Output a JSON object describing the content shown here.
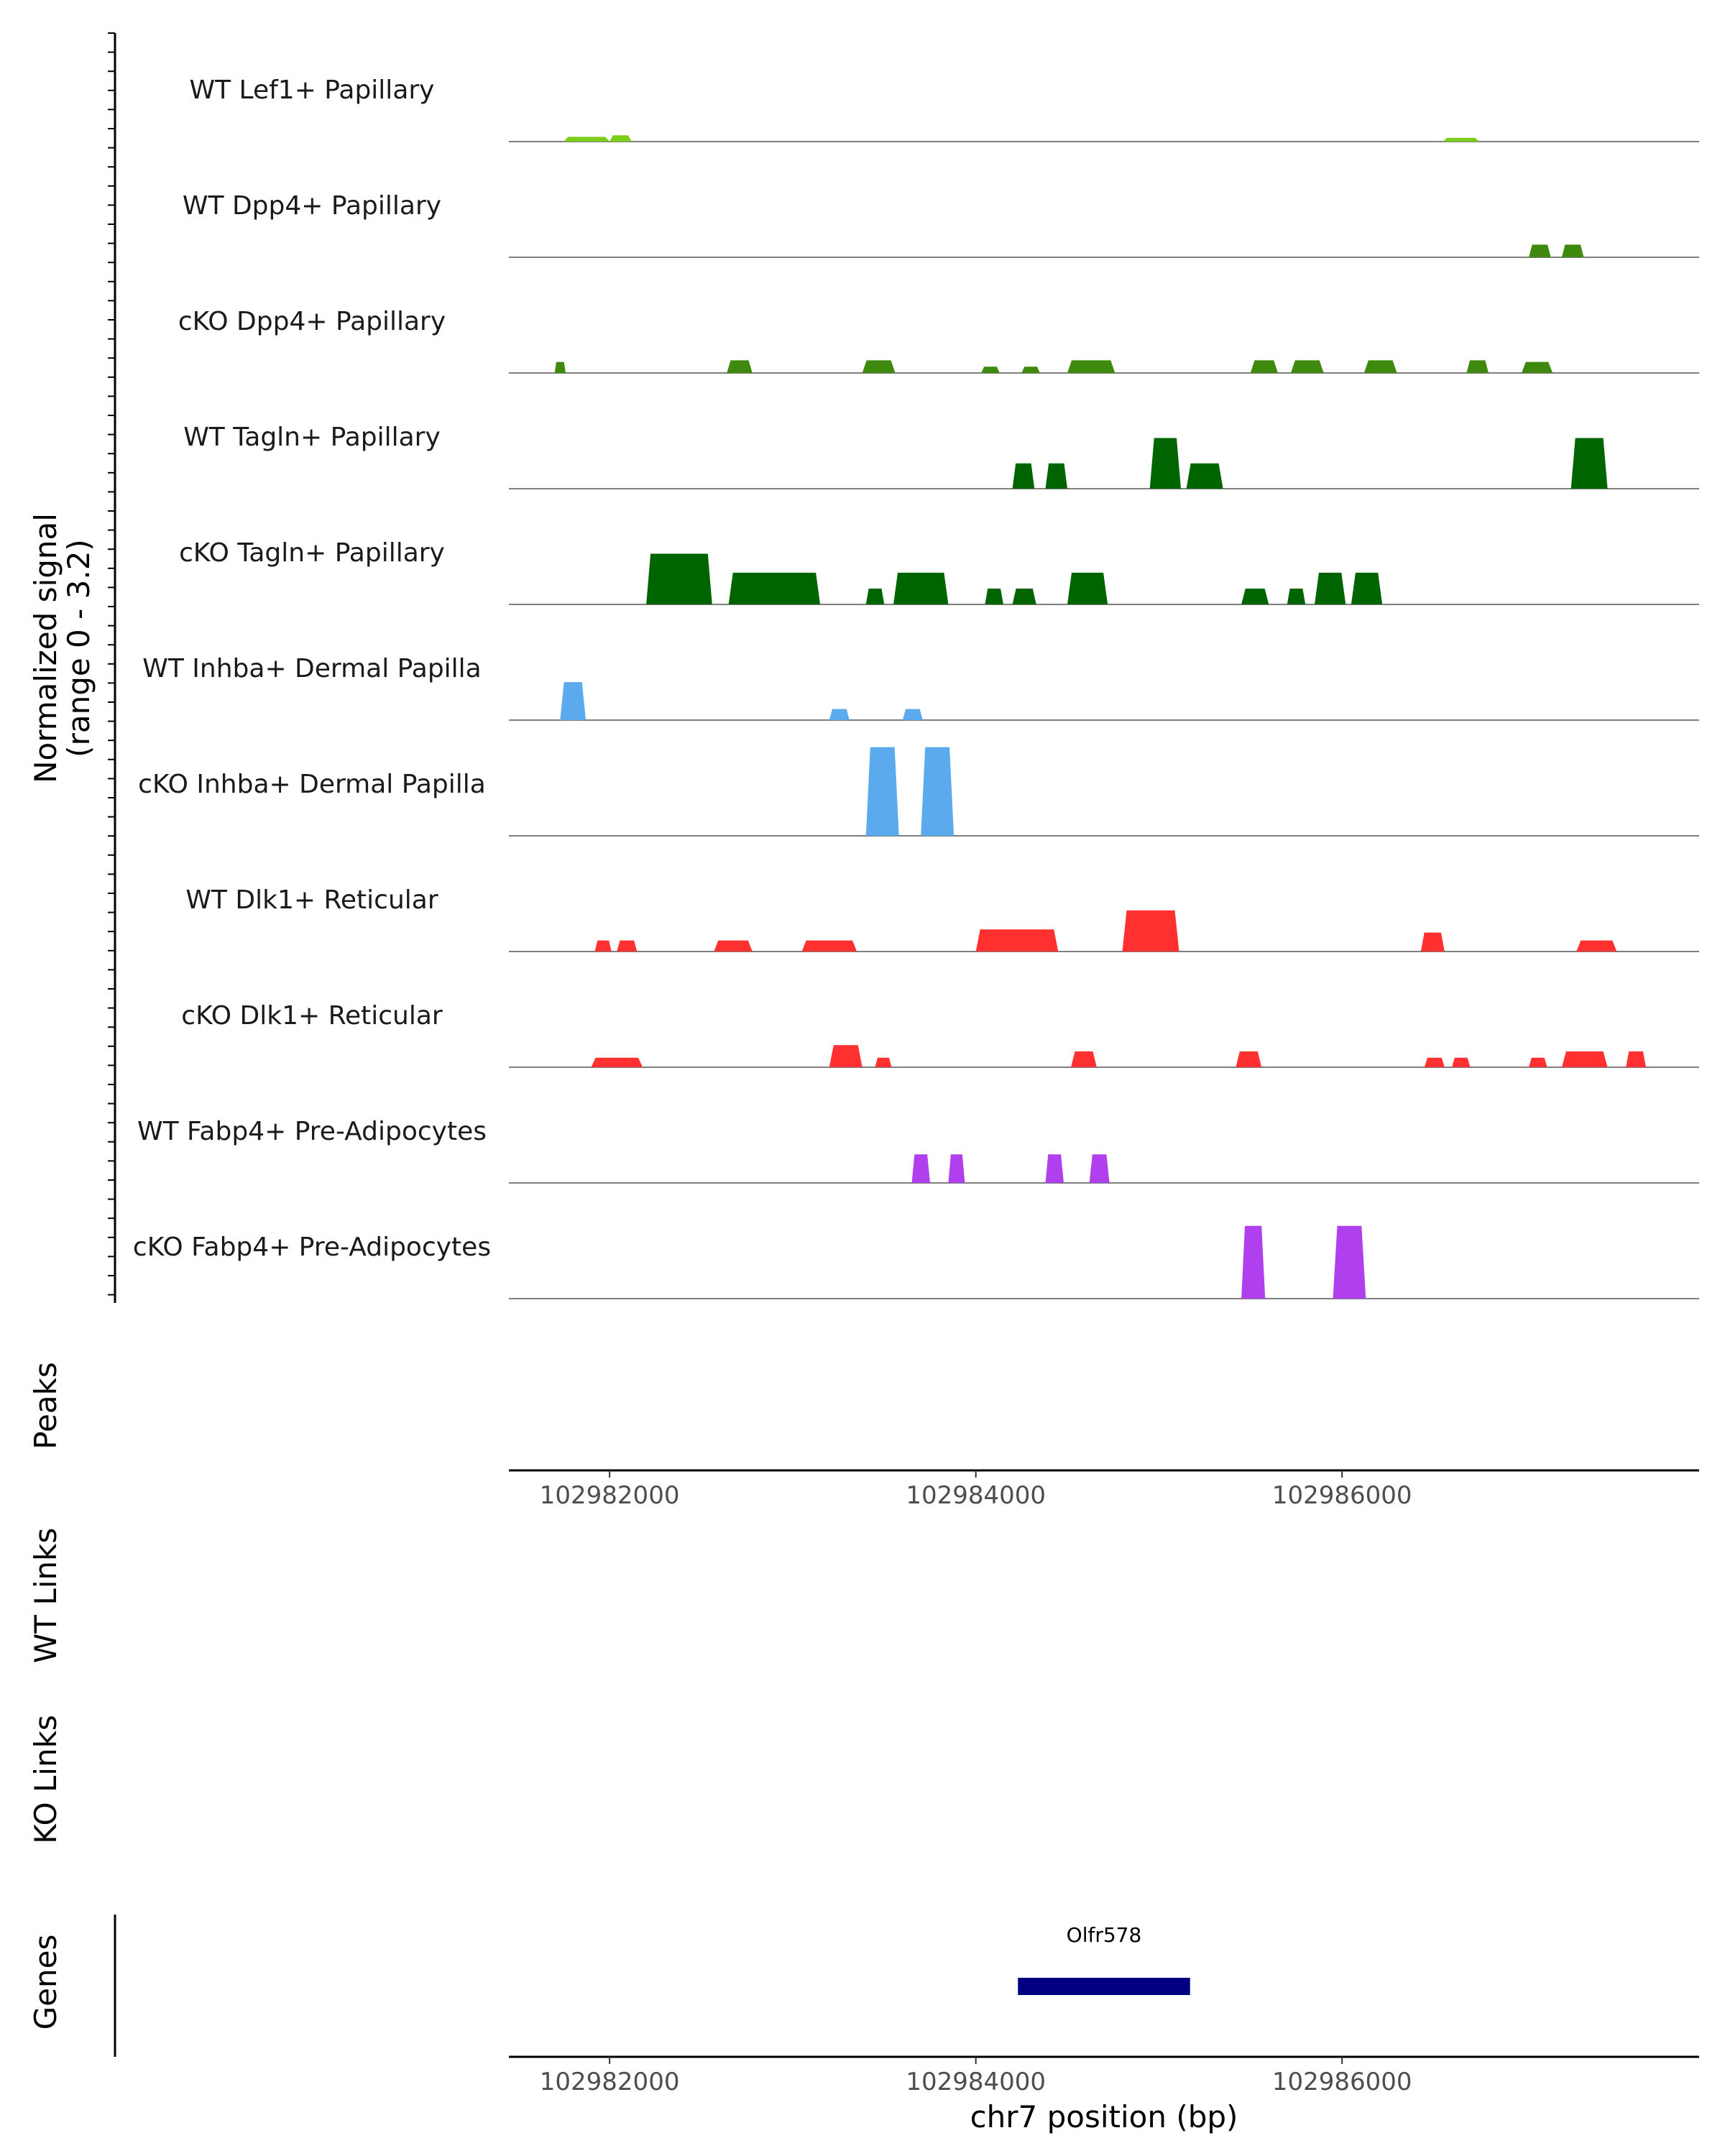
{
  "chart_data": {
    "type": "area",
    "region": {
      "chrom": "chr7",
      "xlim": [
        102981450,
        102987950
      ]
    },
    "ylabel_lines": [
      "Normalized signal",
      "(range 0 - 3.2)"
    ],
    "y_range": [
      0,
      3.2
    ],
    "xlabel": "chr7 position (bp)",
    "x_ticks": [
      102982000,
      102984000,
      102986000
    ],
    "x_tick_labels": [
      "102982000",
      "102984000",
      "102986000"
    ],
    "section_labels": {
      "peaks": "Peaks",
      "wt_links": "WT Links",
      "ko_links": "KO Links",
      "genes": "Genes"
    },
    "tracks": [
      {
        "name": "WT Lef1+ Papillary",
        "color": "#7CCD1C",
        "peaks": [
          {
            "start": 102981750,
            "end": 102982000,
            "height": 0.15
          },
          {
            "start": 102982000,
            "end": 102982120,
            "height": 0.2
          },
          {
            "start": 102986550,
            "end": 102986750,
            "height": 0.12
          }
        ]
      },
      {
        "name": "WT Dpp4+ Papillary",
        "color": "#3F8A0E",
        "peaks": [
          {
            "start": 102987020,
            "end": 102987140,
            "height": 0.4
          },
          {
            "start": 102987200,
            "end": 102987320,
            "height": 0.4
          }
        ]
      },
      {
        "name": "cKO Dpp4+ Papillary",
        "color": "#3F8A0E",
        "peaks": [
          {
            "start": 102981700,
            "end": 102981760,
            "height": 0.35
          },
          {
            "start": 102982640,
            "end": 102982780,
            "height": 0.4
          },
          {
            "start": 102983380,
            "end": 102983560,
            "height": 0.4
          },
          {
            "start": 102984030,
            "end": 102984130,
            "height": 0.2
          },
          {
            "start": 102984250,
            "end": 102984350,
            "height": 0.2
          },
          {
            "start": 102984500,
            "end": 102984760,
            "height": 0.4
          },
          {
            "start": 102985500,
            "end": 102985650,
            "height": 0.4
          },
          {
            "start": 102985720,
            "end": 102985900,
            "height": 0.4
          },
          {
            "start": 102986120,
            "end": 102986300,
            "height": 0.4
          },
          {
            "start": 102986680,
            "end": 102986800,
            "height": 0.4
          },
          {
            "start": 102986980,
            "end": 102987150,
            "height": 0.35
          }
        ]
      },
      {
        "name": "WT Tagln+ Papillary",
        "color": "#006400",
        "peaks": [
          {
            "start": 102984200,
            "end": 102984320,
            "height": 0.8
          },
          {
            "start": 102984380,
            "end": 102984500,
            "height": 0.8
          },
          {
            "start": 102984950,
            "end": 102985120,
            "height": 1.6
          },
          {
            "start": 102985150,
            "end": 102985350,
            "height": 0.8
          },
          {
            "start": 102987250,
            "end": 102987450,
            "height": 1.6
          }
        ]
      },
      {
        "name": "cKO Tagln+ Papillary",
        "color": "#006400",
        "peaks": [
          {
            "start": 102982200,
            "end": 102982560,
            "height": 1.6
          },
          {
            "start": 102982650,
            "end": 102983150,
            "height": 1.0
          },
          {
            "start": 102983400,
            "end": 102983500,
            "height": 0.5
          },
          {
            "start": 102983550,
            "end": 102983850,
            "height": 1.0
          },
          {
            "start": 102984050,
            "end": 102984150,
            "height": 0.5
          },
          {
            "start": 102984200,
            "end": 102984330,
            "height": 0.5
          },
          {
            "start": 102984500,
            "end": 102984720,
            "height": 1.0
          },
          {
            "start": 102985450,
            "end": 102985600,
            "height": 0.5
          },
          {
            "start": 102985700,
            "end": 102985800,
            "height": 0.5
          },
          {
            "start": 102985850,
            "end": 102986020,
            "height": 1.0
          },
          {
            "start": 102986050,
            "end": 102986220,
            "height": 1.0
          }
        ]
      },
      {
        "name": "WT Inhba+ Dermal Papilla",
        "color": "#5BAAEE",
        "peaks": [
          {
            "start": 102981730,
            "end": 102981870,
            "height": 1.2
          },
          {
            "start": 102983200,
            "end": 102983310,
            "height": 0.35
          },
          {
            "start": 102983600,
            "end": 102983710,
            "height": 0.35
          }
        ]
      },
      {
        "name": "cKO Inhba+ Dermal Papilla",
        "color": "#5BAAEE",
        "peaks": [
          {
            "start": 102983400,
            "end": 102983580,
            "height": 2.8
          },
          {
            "start": 102983700,
            "end": 102983880,
            "height": 2.8
          }
        ]
      },
      {
        "name": "WT Dlk1+ Reticular",
        "color": "#FF3030",
        "peaks": [
          {
            "start": 102981920,
            "end": 102982010,
            "height": 0.35
          },
          {
            "start": 102982040,
            "end": 102982150,
            "height": 0.35
          },
          {
            "start": 102982570,
            "end": 102982780,
            "height": 0.35
          },
          {
            "start": 102983050,
            "end": 102983350,
            "height": 0.35
          },
          {
            "start": 102984000,
            "end": 102984450,
            "height": 0.7
          },
          {
            "start": 102984800,
            "end": 102985110,
            "height": 1.3
          },
          {
            "start": 102986430,
            "end": 102986560,
            "height": 0.6
          },
          {
            "start": 102987280,
            "end": 102987500,
            "height": 0.35
          }
        ]
      },
      {
        "name": "cKO Dlk1+ Reticular",
        "color": "#FF3030",
        "peaks": [
          {
            "start": 102981900,
            "end": 102982180,
            "height": 0.3
          },
          {
            "start": 102983200,
            "end": 102983380,
            "height": 0.7
          },
          {
            "start": 102983450,
            "end": 102983540,
            "height": 0.3
          },
          {
            "start": 102984520,
            "end": 102984660,
            "height": 0.5
          },
          {
            "start": 102985420,
            "end": 102985560,
            "height": 0.5
          },
          {
            "start": 102986450,
            "end": 102986560,
            "height": 0.3
          },
          {
            "start": 102986600,
            "end": 102986700,
            "height": 0.3
          },
          {
            "start": 102987020,
            "end": 102987120,
            "height": 0.3
          },
          {
            "start": 102987200,
            "end": 102987450,
            "height": 0.5
          },
          {
            "start": 102987550,
            "end": 102987660,
            "height": 0.5
          }
        ]
      },
      {
        "name": "WT Fabp4+ Pre-Adipocytes",
        "color": "#B040EE",
        "peaks": [
          {
            "start": 102983650,
            "end": 102983750,
            "height": 0.9
          },
          {
            "start": 102983850,
            "end": 102983940,
            "height": 0.9
          },
          {
            "start": 102984380,
            "end": 102984480,
            "height": 0.9
          },
          {
            "start": 102984620,
            "end": 102984730,
            "height": 0.9
          }
        ]
      },
      {
        "name": "cKO Fabp4+ Pre-Adipocytes",
        "color": "#B040EE",
        "peaks": [
          {
            "start": 102985450,
            "end": 102985580,
            "height": 2.3
          },
          {
            "start": 102985950,
            "end": 102986130,
            "height": 2.3
          }
        ]
      }
    ],
    "genes": [
      {
        "name": "Olfr578",
        "start": 102984230,
        "end": 102985170,
        "color": "#000080"
      }
    ]
  }
}
